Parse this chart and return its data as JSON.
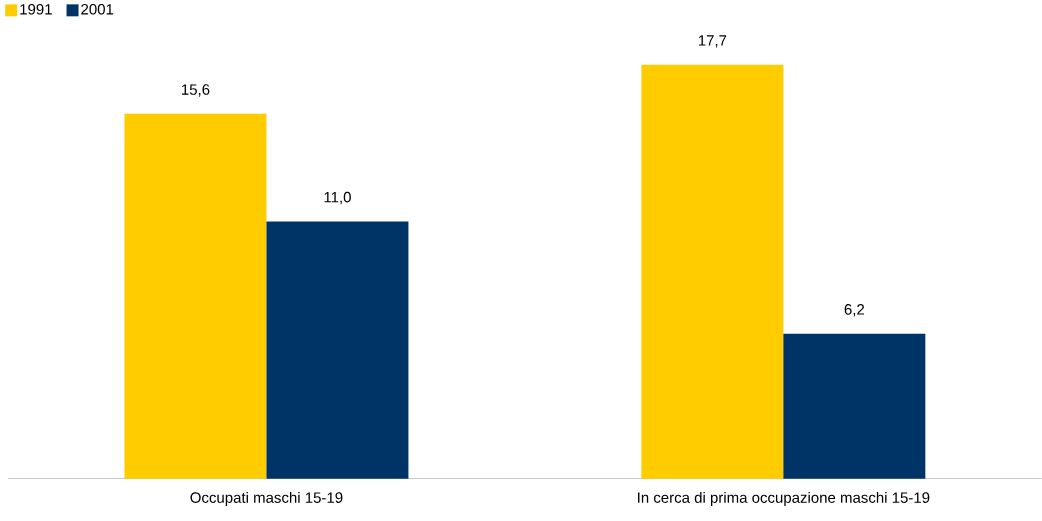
{
  "chart_data": {
    "type": "bar",
    "categories": [
      "Occupati maschi 15-19",
      "In cerca di prima occupazione maschi 15-19"
    ],
    "series": [
      {
        "name": "1991",
        "color": "#ffcc00",
        "values": [
          15.6,
          17.7
        ],
        "value_labels": [
          "15,6",
          "17,7"
        ]
      },
      {
        "name": "2001",
        "color": "#003366",
        "values": [
          11.0,
          6.2
        ],
        "value_labels": [
          "11,0",
          "6,2"
        ]
      }
    ],
    "legend": "top left"
  }
}
